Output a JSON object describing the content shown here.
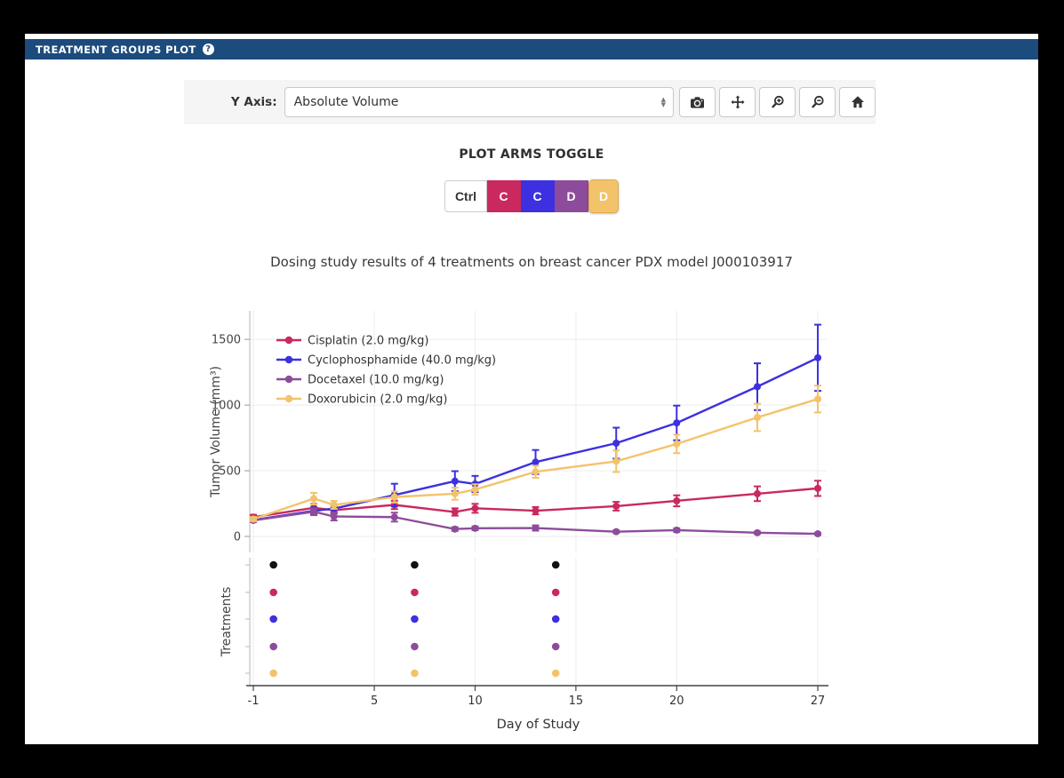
{
  "window": {
    "title": "TREATMENT GROUPS PLOT",
    "help_glyph": "?"
  },
  "toolbar": {
    "y_axis_label": "Y Axis:",
    "y_axis_value": "Absolute Volume",
    "buttons": [
      "camera-icon",
      "pan-icon",
      "zoom-in-icon",
      "zoom-out-icon",
      "home-icon"
    ]
  },
  "plot_arms": {
    "title": "PLOT ARMS TOGGLE",
    "buttons": [
      {
        "label": "Ctrl",
        "bg": "#ffffff",
        "fg": "#333333"
      },
      {
        "label": "C",
        "bg": "#c9295e",
        "fg": "#ffffff"
      },
      {
        "label": "C",
        "bg": "#3c30e0",
        "fg": "#ffffff"
      },
      {
        "label": "D",
        "bg": "#8d4c9b",
        "fg": "#ffffff"
      },
      {
        "label": "D",
        "bg": "#f3c36c",
        "fg": "#ffffff"
      }
    ]
  },
  "chart_data": {
    "type": "line",
    "title": "Dosing study results of 4 treatments on breast cancer PDX model J000103917",
    "xlabel": "Day of Study",
    "ylabel": "Tumor Volume (mm³)",
    "x_ticks": [
      -1,
      5,
      10,
      15,
      20,
      27
    ],
    "y_ticks": [
      0,
      500,
      1000,
      1500
    ],
    "xlim": [
      -1.3,
      27.6
    ],
    "ylim": [
      -120,
      1720
    ],
    "grid": true,
    "legend_position": "top-left",
    "days": [
      -1,
      2,
      3,
      6,
      9,
      10,
      13,
      17,
      20,
      24,
      27
    ],
    "series": [
      {
        "name": "Cisplatin (2.0 mg/kg)",
        "color": "#c9295e",
        "values": [
          147,
          218,
          200,
          240,
          186,
          214,
          196,
          230,
          271,
          325,
          366
        ],
        "errors": [
          18,
          30,
          26,
          32,
          28,
          34,
          28,
          33,
          42,
          56,
          58
        ]
      },
      {
        "name": "Cyclophosphamide (40.0 mg/kg)",
        "color": "#3c30e0",
        "values": [
          125,
          195,
          212,
          315,
          421,
          399,
          566,
          710,
          864,
          1140,
          1360
        ],
        "errors": [
          15,
          26,
          30,
          86,
          76,
          62,
          92,
          118,
          132,
          178,
          252
        ]
      },
      {
        "name": "Docetaxel (10.0 mg/kg)",
        "color": "#8d4c9b",
        "values": [
          122,
          188,
          152,
          147,
          56,
          62,
          64,
          36,
          48,
          28,
          20
        ],
        "errors": [
          12,
          26,
          30,
          34,
          14,
          14,
          20,
          10,
          14,
          9,
          8
        ]
      },
      {
        "name": "Doxorubicin (2.0 mg/kg)",
        "color": "#f3c36c",
        "values": [
          132,
          288,
          240,
          300,
          325,
          357,
          492,
          572,
          704,
          906,
          1046
        ],
        "errors": [
          16,
          44,
          30,
          42,
          46,
          40,
          46,
          82,
          70,
          104,
          102
        ]
      }
    ],
    "treatments_panel": {
      "label": "Treatments",
      "dose_days": [
        0,
        7,
        14
      ],
      "rows": [
        {
          "name": "Control",
          "color": "#111111"
        },
        {
          "name": "Cisplatin",
          "color": "#c9295e"
        },
        {
          "name": "Cyclophosphamide",
          "color": "#3c30e0"
        },
        {
          "name": "Docetaxel",
          "color": "#8d4c9b"
        },
        {
          "name": "Doxorubicin",
          "color": "#f3c36c"
        }
      ]
    }
  }
}
